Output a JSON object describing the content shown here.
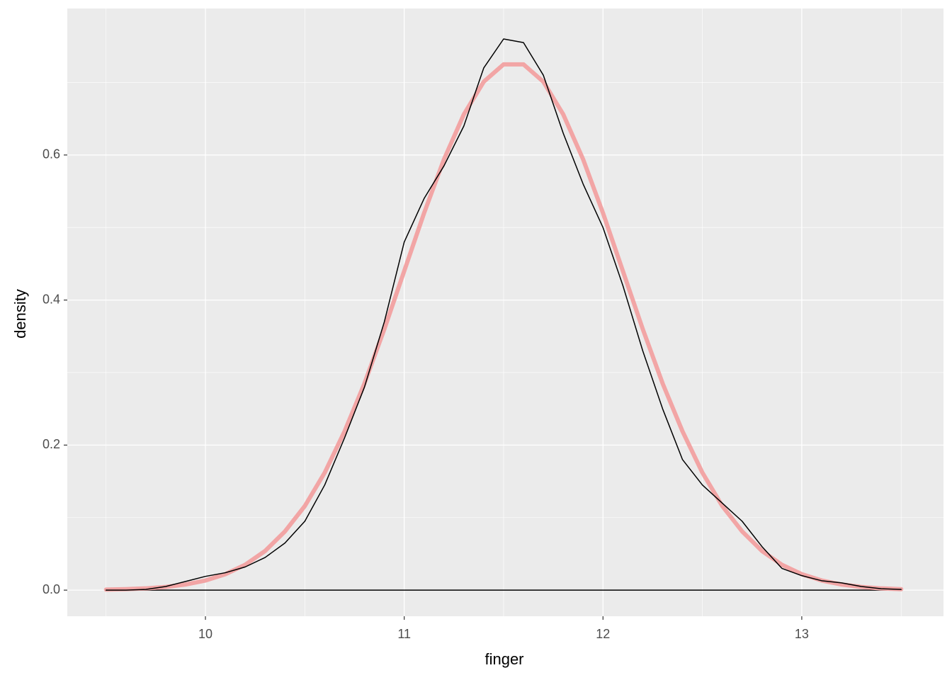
{
  "chart_data": {
    "type": "line",
    "x_label": "finger",
    "y_label": "density",
    "x": [
      9.5,
      9.6,
      9.7,
      9.8,
      9.9,
      10.0,
      10.1,
      10.2,
      10.3,
      10.4,
      10.5,
      10.6,
      10.7,
      10.8,
      10.9,
      11.0,
      11.1,
      11.2,
      11.3,
      11.4,
      11.5,
      11.6,
      11.7,
      11.8,
      11.9,
      12.0,
      12.1,
      12.2,
      12.3,
      12.4,
      12.5,
      12.6,
      12.7,
      12.8,
      12.9,
      13.0,
      13.1,
      13.2,
      13.3,
      13.4,
      13.5
    ],
    "series": [
      {
        "color": "#f2a5a5",
        "values": [
          0.0007,
          0.0013,
          0.0024,
          0.0044,
          0.0078,
          0.0133,
          0.022,
          0.035,
          0.054,
          0.081,
          0.116,
          0.162,
          0.219,
          0.285,
          0.36,
          0.44,
          0.52,
          0.594,
          0.656,
          0.701,
          0.725,
          0.725,
          0.701,
          0.656,
          0.594,
          0.52,
          0.44,
          0.36,
          0.285,
          0.219,
          0.162,
          0.116,
          0.081,
          0.054,
          0.035,
          0.022,
          0.0133,
          0.0078,
          0.0044,
          0.0024,
          0.0013
        ]
      },
      {
        "color": "#000000",
        "values": [
          0.0,
          0.0,
          0.001,
          0.005,
          0.012,
          0.019,
          0.024,
          0.032,
          0.045,
          0.065,
          0.095,
          0.145,
          0.21,
          0.28,
          0.37,
          0.48,
          0.54,
          0.585,
          0.64,
          0.72,
          0.76,
          0.755,
          0.71,
          0.63,
          0.56,
          0.5,
          0.42,
          0.33,
          0.25,
          0.18,
          0.145,
          0.12,
          0.095,
          0.06,
          0.03,
          0.02,
          0.013,
          0.01,
          0.005,
          0.002,
          0.001
        ]
      }
    ],
    "xlim": [
      9.305,
      13.713
    ],
    "xticks": [
      10,
      11,
      12,
      13
    ],
    "x_minor_breaks": [
      9.5,
      10.5,
      11.5,
      12.5,
      13.5
    ],
    "ylim": [
      -0.036,
      0.802
    ],
    "yticks": [
      {
        "value": 0,
        "label": "0.0"
      },
      0.2,
      0.4,
      0.6
    ],
    "y_minor_breaks": [
      0.1,
      0.3,
      0.5,
      0.7
    ],
    "grid": true,
    "background": "#ebebeb"
  }
}
